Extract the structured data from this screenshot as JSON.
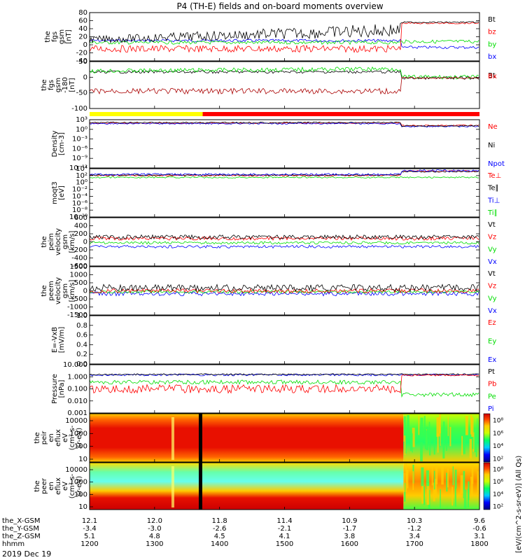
{
  "chart_data": {
    "type": "line",
    "title": "P4 (TH-E) fields and on-board moments overview",
    "date_label": "2019 Dec 19",
    "colors": {
      "black": "#000000",
      "red": "#ff0000",
      "green": "#00dd00",
      "blue": "#0000ff",
      "darkred": "#aa0000",
      "yellow": "#ffff00",
      "gold": "#b08800"
    },
    "x_axis": {
      "rows": [
        {
          "label": "the_X-GSM",
          "values": [
            "12.1",
            "12.0",
            "11.8",
            "11.4",
            "10.9",
            "10.3",
            "9.6"
          ]
        },
        {
          "label": "the_Y-GSM",
          "values": [
            "-3.4",
            "-3.0",
            "-2.6",
            "-2.1",
            "-1.7",
            "-1.2",
            "-0.6"
          ]
        },
        {
          "label": "the_Z-GSM",
          "values": [
            "5.1",
            "4.8",
            "4.5",
            "4.1",
            "3.8",
            "3.4",
            "3.1"
          ]
        },
        {
          "label": "hhmm",
          "values": [
            "1200",
            "1300",
            "1400",
            "1500",
            "1600",
            "1700",
            "1800"
          ]
        }
      ]
    },
    "panels": [
      {
        "ylabel": [
          "the",
          "fgs",
          "gsm",
          "[nT]"
        ],
        "ticks": [
          "80",
          "60",
          "40",
          "20",
          "0",
          "-20",
          "-40"
        ],
        "legend": [
          {
            "text": "Bt",
            "color": "black"
          },
          {
            "text": "bz",
            "color": "red"
          },
          {
            "text": "by",
            "color": "green"
          },
          {
            "text": "bx",
            "color": "blue"
          }
        ]
      },
      {
        "ylabel": [
          "the",
          "fgs",
          "gsm",
          "-180",
          "[nT]"
        ],
        "ticks": [
          "50",
          "0",
          "-50",
          "-100"
        ],
        "legend": [
          {
            "text": "Bt",
            "color": "black"
          },
          {
            "text": "Bx",
            "color": "red"
          }
        ]
      },
      {
        "ylabel": [
          "Density",
          "[cm-3]"
        ],
        "ticks": [
          "10³",
          "10⁰",
          "10⁻³",
          "10⁻⁶",
          "10⁻⁹",
          "10⁻¹²"
        ],
        "legend": [
          {
            "text": "Ne",
            "color": "red"
          },
          {
            "text": "Ni",
            "color": "black"
          },
          {
            "text": "Npot",
            "color": "blue"
          }
        ]
      },
      {
        "ylabel": [
          "moqt3",
          "[eV]"
        ],
        "ticks": [
          "10⁴",
          "10²",
          "10⁰",
          "10⁻²",
          "10⁻⁴",
          "10⁻⁶",
          "10⁻⁸",
          "10⁻¹⁰"
        ],
        "legend": [
          {
            "text": "Te⊥",
            "color": "red"
          },
          {
            "text": "Te∥",
            "color": "black"
          },
          {
            "text": "Ti⊥",
            "color": "blue"
          },
          {
            "text": "Ti∥",
            "color": "green"
          }
        ]
      },
      {
        "ylabel": [
          "the",
          "peim",
          "velocity",
          "gsm",
          "[km/s]"
        ],
        "ticks": [
          "600",
          "400",
          "200",
          "0",
          "-200",
          "-400",
          "-600"
        ],
        "legend": [
          {
            "text": "Vt",
            "color": "black"
          },
          {
            "text": "Vz",
            "color": "red"
          },
          {
            "text": "Vy",
            "color": "green"
          },
          {
            "text": "Vx",
            "color": "blue"
          }
        ]
      },
      {
        "ylabel": [
          "the",
          "peem",
          "velocity",
          "gsm",
          "[km/s]"
        ],
        "ticks": [
          "1500",
          "1000",
          "500",
          "0",
          "-500",
          "-1000",
          "-1500"
        ],
        "legend": [
          {
            "text": "Vt",
            "color": "black"
          },
          {
            "text": "Vz",
            "color": "red"
          },
          {
            "text": "Vy",
            "color": "green"
          },
          {
            "text": "Vx",
            "color": "blue"
          }
        ]
      },
      {
        "ylabel": [
          "E=-VxB",
          "[mV/m]"
        ],
        "ticks": [
          "1.0",
          "0.8",
          "0.6",
          "0.4",
          "0.2",
          "0.0"
        ],
        "legend": [
          {
            "text": "Ez",
            "color": "red"
          },
          {
            "text": "Ey",
            "color": "green"
          },
          {
            "text": "Ex",
            "color": "blue"
          }
        ]
      },
      {
        "ylabel": [
          "Pressure",
          "[nPa]"
        ],
        "ticks": [
          "10.000",
          "1.000",
          "0.100",
          "0.010",
          "0.001"
        ],
        "legend": [
          {
            "text": "Pt",
            "color": "black"
          },
          {
            "text": "Pb",
            "color": "red"
          },
          {
            "text": "Pe",
            "color": "green"
          },
          {
            "text": "Pi",
            "color": "blue"
          }
        ]
      },
      {
        "ylabel": [
          "the",
          "peir",
          "en",
          "eflux",
          "eV",
          "(cm²-s-",
          "sr-eV)"
        ],
        "ticks": [
          "10000",
          "1000",
          "100",
          "10"
        ],
        "colorbar_ticks": [
          "10⁸",
          "10⁶",
          "10⁴",
          "10²"
        ]
      },
      {
        "ylabel": [
          "the",
          "peer",
          "en",
          "eflux",
          "eV",
          "(cm²-s-",
          "sr-eV)"
        ],
        "ticks": [
          "10000",
          "1000",
          "100",
          "10"
        ],
        "colorbar_ticks": [
          "10⁸",
          "10⁶",
          "10⁴",
          "10²"
        ]
      }
    ],
    "colorbar_label": "[eV/(cm^2-s-sr-eV)] (All Qs)"
  }
}
